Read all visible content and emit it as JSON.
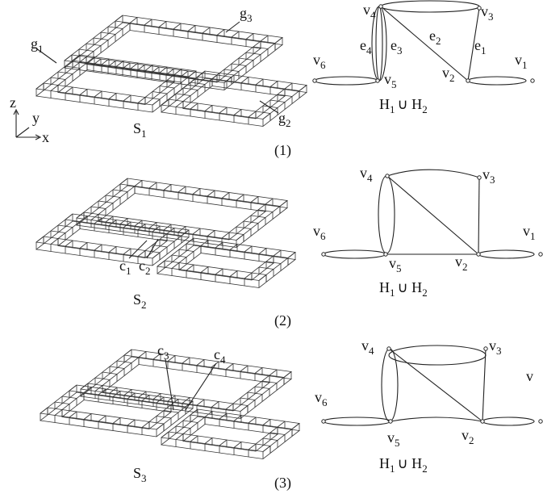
{
  "axes": [
    "z",
    "y",
    "x"
  ],
  "panels": [
    {
      "label": [
        "(1)"
      ],
      "structure": {
        "name": [
          "S",
          "1"
        ],
        "labels": [
          [
            "g",
            "1"
          ],
          [
            "g",
            "3"
          ],
          [
            "g",
            "2"
          ]
        ]
      },
      "graph": {
        "vertices": [
          [
            "v",
            "1"
          ],
          [
            "v",
            "2"
          ],
          [
            "v",
            "3"
          ],
          [
            "v",
            "4"
          ],
          [
            "v",
            "5"
          ],
          [
            "v",
            "6"
          ]
        ],
        "edges": [
          [
            "e",
            "1"
          ],
          [
            "e",
            "2"
          ],
          [
            "e",
            "3"
          ],
          [
            "e",
            "4"
          ]
        ],
        "caption": [
          "H",
          "1",
          "∪ H",
          "2"
        ]
      }
    },
    {
      "label": [
        "(2)"
      ],
      "structure": {
        "name": [
          "S",
          "2"
        ],
        "labels": [
          [
            "c",
            "1"
          ],
          [
            "c",
            "2"
          ]
        ]
      },
      "graph": {
        "vertices": [
          [
            "v",
            "1"
          ],
          [
            "v",
            "2"
          ],
          [
            "v",
            "3"
          ],
          [
            "v",
            "4"
          ],
          [
            "v",
            "5"
          ],
          [
            "v",
            "6"
          ]
        ],
        "edges": [],
        "caption": [
          "H",
          "1",
          "∪ H",
          "2"
        ]
      }
    },
    {
      "label": [
        "(3)"
      ],
      "structure": {
        "name": [
          "S",
          "3"
        ],
        "labels": [
          [
            "c",
            "3"
          ],
          [
            "c",
            "4"
          ]
        ]
      },
      "graph": {
        "vertices": [
          [
            "v"
          ],
          [
            "v",
            "2"
          ],
          [
            "v",
            "3"
          ],
          [
            "v",
            "4"
          ],
          [
            "v",
            "5"
          ],
          [
            "v",
            "6"
          ]
        ],
        "edges": [],
        "caption": [
          "H",
          "1",
          "∪ H",
          "2"
        ]
      }
    }
  ]
}
